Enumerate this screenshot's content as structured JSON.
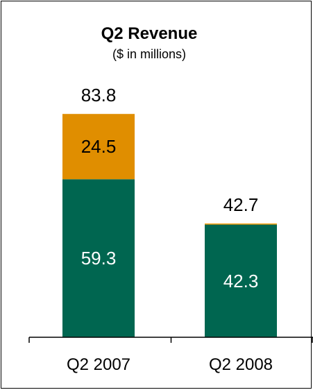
{
  "chart_data": {
    "type": "bar",
    "stacked": true,
    "title": "Q2 Revenue",
    "subtitle": "($ in millions)",
    "categories": [
      "Q2 2007",
      "Q2 2008"
    ],
    "series": [
      {
        "values": [
          59.3,
          42.3
        ],
        "color": "#006650"
      },
      {
        "values": [
          24.5,
          0.4
        ],
        "color": "#E08E00"
      }
    ],
    "segment_labels": [
      [
        "59.3",
        "24.5"
      ],
      [
        "42.3",
        ""
      ]
    ],
    "totals": [
      "83.8",
      "42.7"
    ],
    "ylim": [
      0,
      100
    ],
    "colors": {
      "accent_orange_2008": "#FF9F0A",
      "label_dark": "#000000",
      "label_light": "#ffffff"
    }
  }
}
